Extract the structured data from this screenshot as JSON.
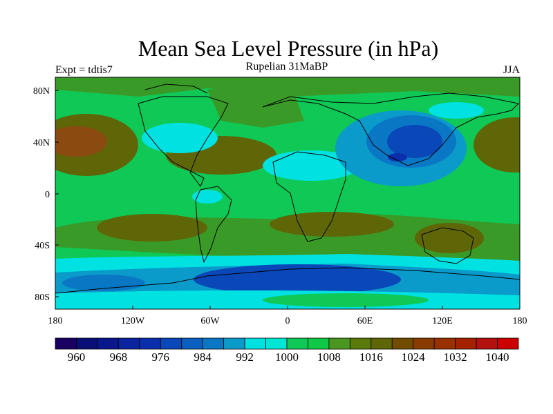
{
  "title": "Mean Sea Level Pressure (in hPa)",
  "subtitle": "Rupelian  31MaBP",
  "left_label": "Expt = tdtis7",
  "right_label": "JJA",
  "axes": {
    "x_ticks": [
      "180",
      "120W",
      "60W",
      "0",
      "60E",
      "120E",
      "180"
    ],
    "y_ticks": [
      "80N",
      "40N",
      "0",
      "40S",
      "80S"
    ]
  },
  "colorbar": {
    "colors": [
      "#1a0060",
      "#0a0f77",
      "#08178c",
      "#0a23a0",
      "#0b2fac",
      "#0a47b8",
      "#0a5fc0",
      "#0a77c4",
      "#0a9bcb",
      "#00e1e1",
      "#00e6d6",
      "#10c855",
      "#10c848",
      "#4a9620",
      "#5a7a0a",
      "#5e6608",
      "#724c00",
      "#8a3c00",
      "#983000",
      "#a42200",
      "#b41010",
      "#cc0000"
    ],
    "labels": [
      "960",
      "968",
      "976",
      "984",
      "992",
      "1000",
      "1008",
      "1016",
      "1024",
      "1032",
      "1040"
    ]
  },
  "palette": {
    "low_deep": "#0a47b8",
    "low": "#0a77c4",
    "mid_low": "#0a9bcb",
    "cyan": "#00e1e1",
    "green_light": "#10c855",
    "green": "#3a9a28",
    "olive": "#5e6608",
    "brown": "#8a4a10",
    "deep_blue": "#0b2fac"
  }
}
